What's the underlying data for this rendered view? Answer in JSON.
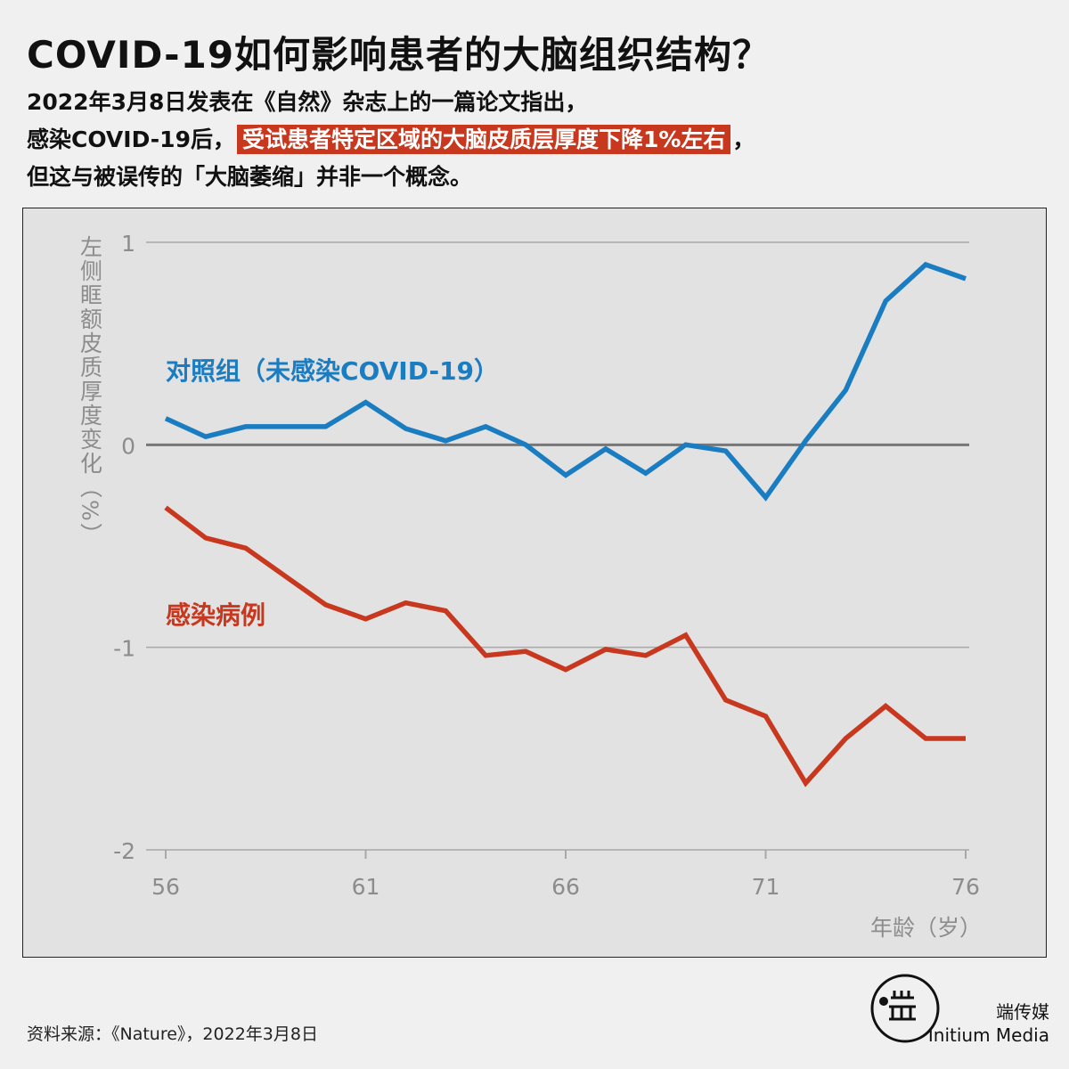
{
  "header": {
    "title": "COVID-19如何影响患者的大脑组织结构？",
    "line1": "2022年3月8日发表在《自然》杂志上的一篇论文指出，",
    "line2_pre": "感染COVID-19后，",
    "line2_highlight": "受试患者特定区域的大脑皮质层厚度下降1%左右",
    "line2_post": "，",
    "line3": "但这与被误传的「大脑萎缩」并非一个概念。"
  },
  "chart_data": {
    "type": "line",
    "ylabel": "左侧眶额皮质厚度变化（%）",
    "xlabel": "年龄（岁）",
    "xlim": [
      56,
      76
    ],
    "ylim": [
      -2,
      1
    ],
    "x_ticks": [
      "56",
      "61",
      "66",
      "71",
      "76"
    ],
    "y_ticks": [
      "1",
      "0",
      "-1",
      "-2"
    ],
    "x": [
      56,
      57,
      58,
      59,
      60,
      61,
      62,
      63,
      64,
      65,
      66,
      67,
      68,
      69,
      70,
      71,
      72,
      73,
      74,
      75,
      76
    ],
    "series": [
      {
        "name": "对照组（未感染COVID-19）",
        "color": "#1a7cc1",
        "values": [
          0.13,
          0.04,
          0.09,
          0.09,
          0.09,
          0.21,
          0.08,
          0.02,
          0.09,
          0.0,
          -0.15,
          -0.02,
          -0.14,
          0.0,
          -0.03,
          -0.26,
          0.02,
          0.27,
          0.71,
          0.89,
          0.82
        ]
      },
      {
        "name": "感染病例",
        "color": "#c8381e",
        "values": [
          -0.31,
          -0.46,
          -0.51,
          -0.65,
          -0.79,
          -0.86,
          -0.78,
          -0.82,
          -1.04,
          -1.02,
          -1.11,
          -1.01,
          -1.04,
          -0.94,
          -1.26,
          -1.34,
          -1.67,
          -1.45,
          -1.29,
          -1.45,
          -1.45
        ]
      }
    ],
    "grid": true,
    "zero_line": true
  },
  "footer": {
    "source": "资料来源：《Nature》，2022年3月8日"
  },
  "brand": {
    "name_zh": "端传媒",
    "name_en": "Initium Media"
  }
}
